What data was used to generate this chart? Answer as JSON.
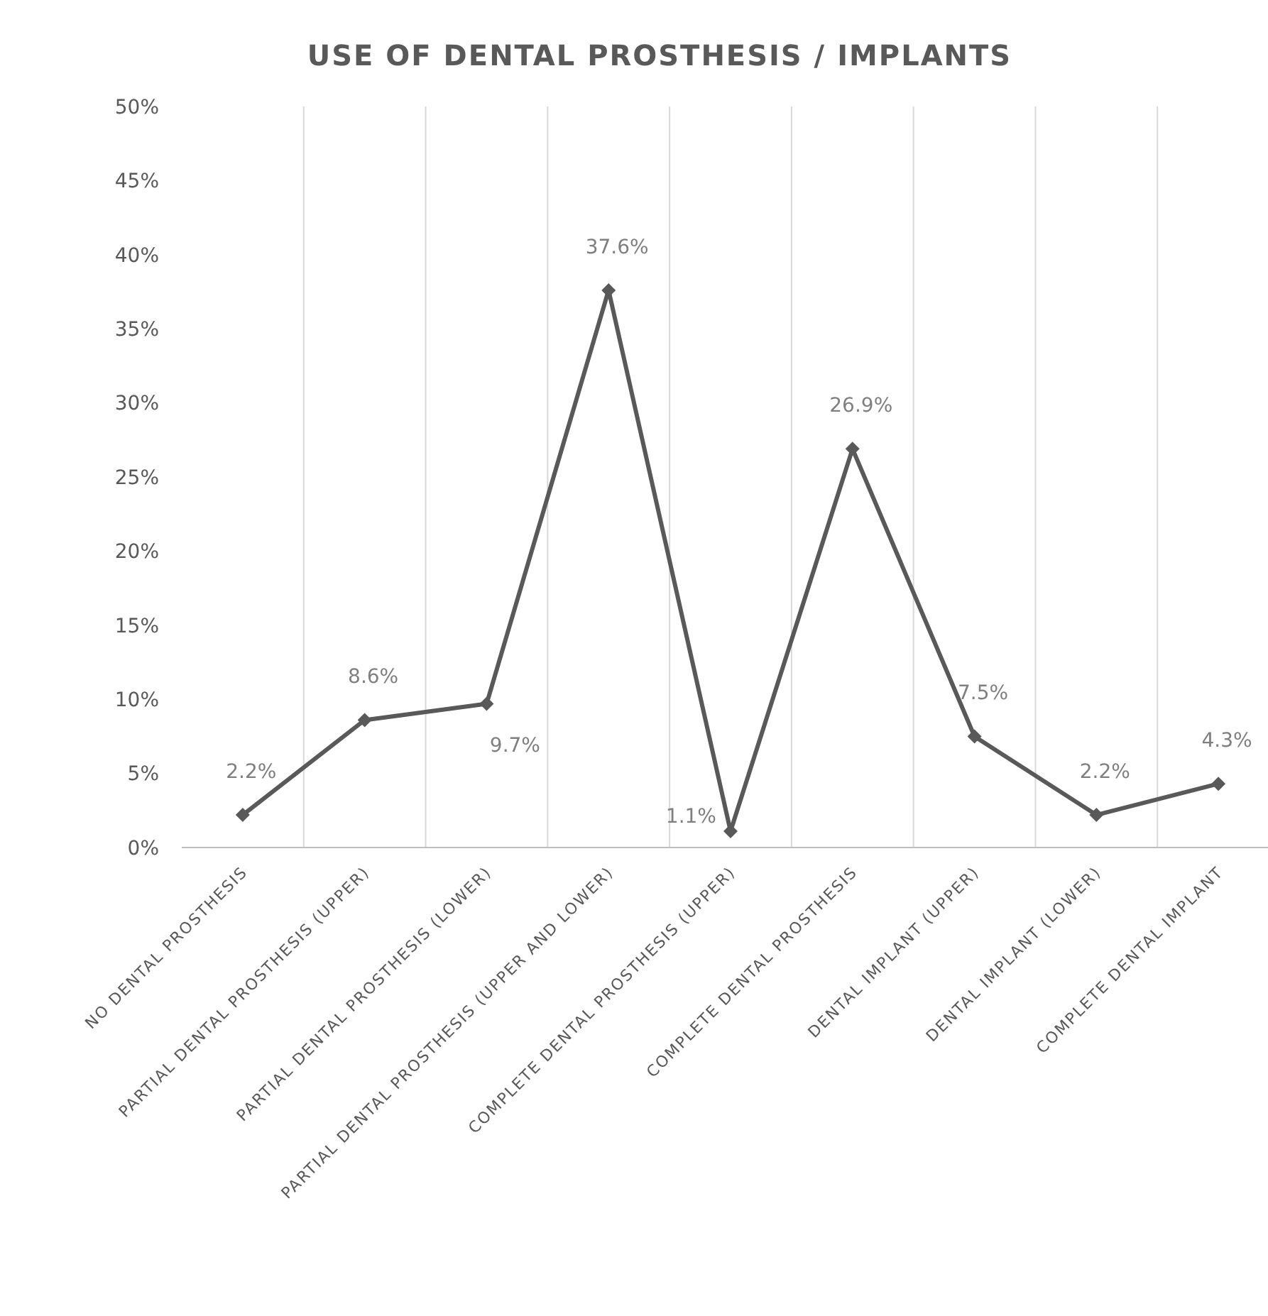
{
  "chart_data": {
    "type": "line",
    "title": "USE OF DENTAL PROSTHESIS / IMPLANTS",
    "categories": [
      "NO DENTAL PROSTHESIS",
      "PARTIAL DENTAL PROSTHESIS (UPPER)",
      "PARTIAL DENTAL PROSTHESIS (LOWER)",
      "PARTIAL DENTAL PROSTHESIS (UPPER AND LOWER)",
      "COMPLETE DENTAL PROSTHESIS (UPPER)",
      "COMPLETE DENTAL PROSTHESIS",
      "DENTAL IMPLANT (UPPER)",
      "DENTAL IMPLANT (LOWER)",
      "COMPLETE DENTAL IMPLANT"
    ],
    "series": [
      {
        "color": "#595959",
        "values": [
          2.2,
          8.6,
          9.7,
          37.6,
          1.1,
          26.9,
          7.5,
          2.2,
          4.3
        ],
        "value_labels": [
          "2.2%",
          "8.6%",
          "9.7%",
          "37.6%",
          "1.1%",
          "26.9%",
          "7.5%",
          "2.2%",
          "4.3%"
        ]
      }
    ],
    "ylim": [
      0,
      50
    ],
    "yticks": [
      {
        "value": 0,
        "label": "0%"
      },
      {
        "value": 5,
        "label": "5%"
      },
      {
        "value": 10,
        "label": "10%"
      },
      {
        "value": 15,
        "label": "15%"
      },
      {
        "value": 20,
        "label": "20%"
      },
      {
        "value": 25,
        "label": "25%"
      },
      {
        "value": 30,
        "label": "30%"
      },
      {
        "value": 35,
        "label": "35%"
      },
      {
        "value": 40,
        "label": "40%"
      },
      {
        "value": 45,
        "label": "45%"
      },
      {
        "value": 50,
        "label": "50%"
      }
    ],
    "grid": "x",
    "marker": "diamond",
    "line_style": "solid"
  }
}
